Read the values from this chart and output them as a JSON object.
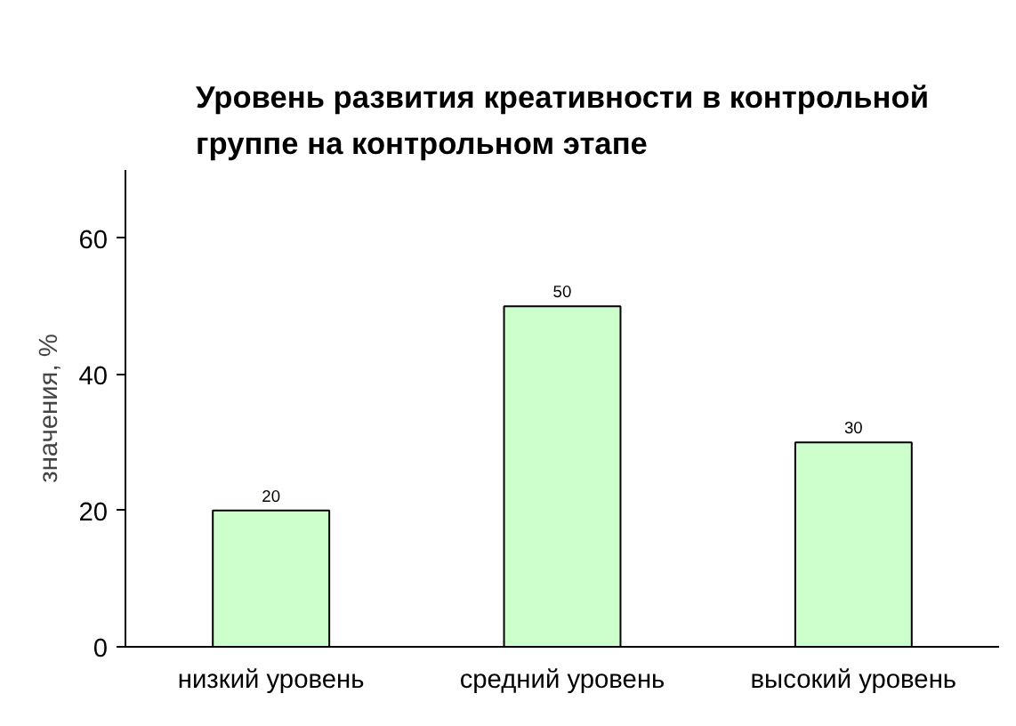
{
  "chart_data": {
    "type": "bar",
    "title": "Уровень развития креативности в контрольной\nгруппе на контрольном этапе",
    "ylabel": "значения, %",
    "categories": [
      "низкий уровень",
      "средний уровень",
      "высокий уровень"
    ],
    "values": [
      20,
      50,
      30
    ],
    "color": "#ccffcc",
    "ylim": [
      0,
      70
    ],
    "yticks": [
      0,
      20,
      40,
      60
    ],
    "grid": false,
    "data_labels": true
  }
}
